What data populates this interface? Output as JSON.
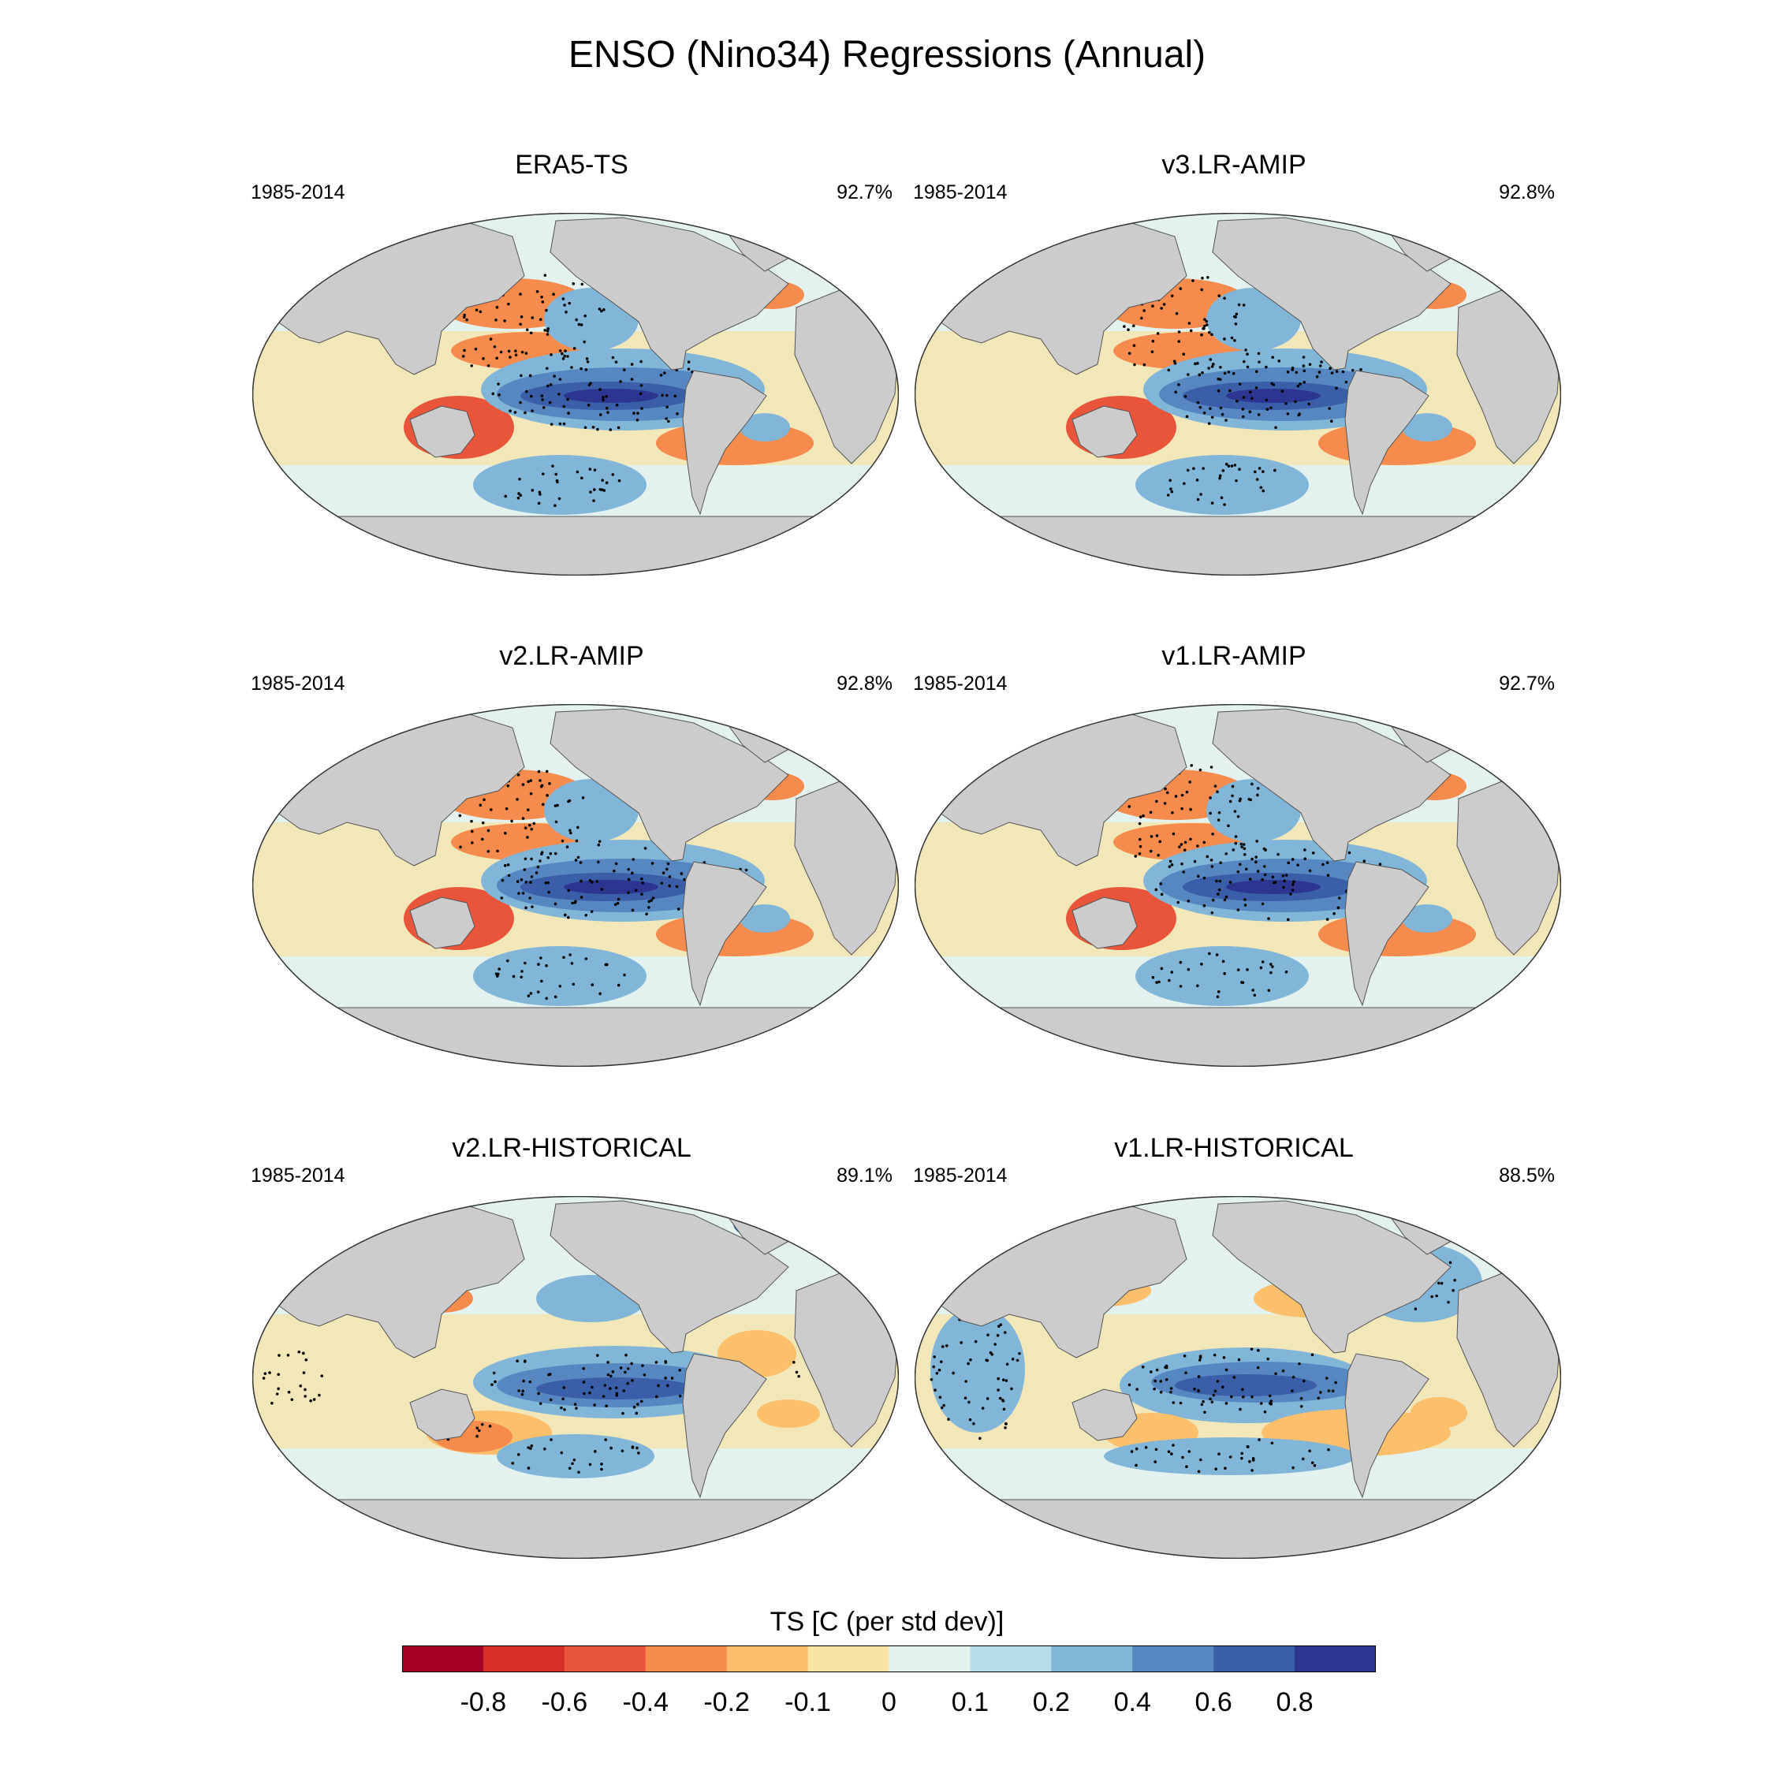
{
  "title": "ENSO (Nino34) Regressions (Annual)",
  "panels": [
    {
      "title": "ERA5-TS",
      "period": "1985-2014",
      "pct": "92.7%",
      "variant": "amip"
    },
    {
      "title": "v3.LR-AMIP",
      "period": "1985-2014",
      "pct": "92.8%",
      "variant": "amip"
    },
    {
      "title": "v2.LR-AMIP",
      "period": "1985-2014",
      "pct": "92.8%",
      "variant": "amip"
    },
    {
      "title": "v1.LR-AMIP",
      "period": "1985-2014",
      "pct": "92.7%",
      "variant": "amip"
    },
    {
      "title": "v2.LR-HISTORICAL",
      "period": "1985-2014",
      "pct": "89.1%",
      "variant": "hist2"
    },
    {
      "title": "v1.LR-HISTORICAL",
      "period": "1985-2014",
      "pct": "88.5%",
      "variant": "hist1"
    }
  ],
  "colorbar": {
    "title": "TS [C (per std dev)]",
    "labels": [
      "-0.8",
      "-0.6",
      "-0.4",
      "-0.2",
      "-0.1",
      "0",
      "0.1",
      "0.2",
      "0.4",
      "0.6",
      "0.8"
    ],
    "colors": [
      "#a50026",
      "#d73027",
      "#e8553b",
      "#f68b4e",
      "#fcbf6c",
      "#f8e3a3",
      "#e3f2ef",
      "#b6dcea",
      "#82b6d9",
      "#5787c0",
      "#3a5ea8",
      "#2c3590"
    ]
  },
  "land_color": "#cccccc"
}
